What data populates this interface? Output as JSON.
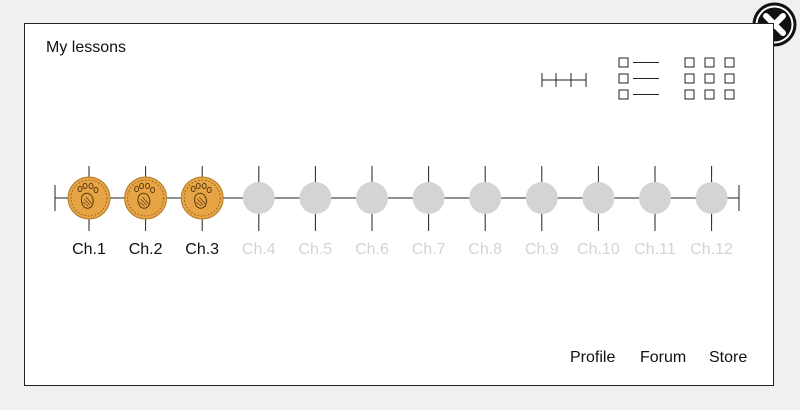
{
  "header": {
    "title": "My lessons"
  },
  "close": {
    "icon": "close-icon"
  },
  "view_toggles": [
    {
      "name": "timeline-view-icon"
    },
    {
      "name": "list-view-icon"
    },
    {
      "name": "grid-view-icon"
    }
  ],
  "chapters": [
    {
      "label": "Ch.1",
      "completed": true
    },
    {
      "label": "Ch.2",
      "completed": true
    },
    {
      "label": "Ch.3",
      "completed": true
    },
    {
      "label": "Ch.4",
      "completed": false
    },
    {
      "label": "Ch.5",
      "completed": false
    },
    {
      "label": "Ch.6",
      "completed": false
    },
    {
      "label": "Ch.7",
      "completed": false
    },
    {
      "label": "Ch.8",
      "completed": false
    },
    {
      "label": "Ch.9",
      "completed": false
    },
    {
      "label": "Ch.10",
      "completed": false
    },
    {
      "label": "Ch.11",
      "completed": false
    },
    {
      "label": "Ch.12",
      "completed": false
    }
  ],
  "footer": {
    "profile_label": "Profile",
    "forum_label": "Forum",
    "store_label": "Store"
  },
  "colors": {
    "completed_fill": "#e6a445",
    "completed_stroke": "#b07a25",
    "locked_fill": "#d4d4d4",
    "locked_text": "#d4d4d4",
    "line": "#222222"
  }
}
